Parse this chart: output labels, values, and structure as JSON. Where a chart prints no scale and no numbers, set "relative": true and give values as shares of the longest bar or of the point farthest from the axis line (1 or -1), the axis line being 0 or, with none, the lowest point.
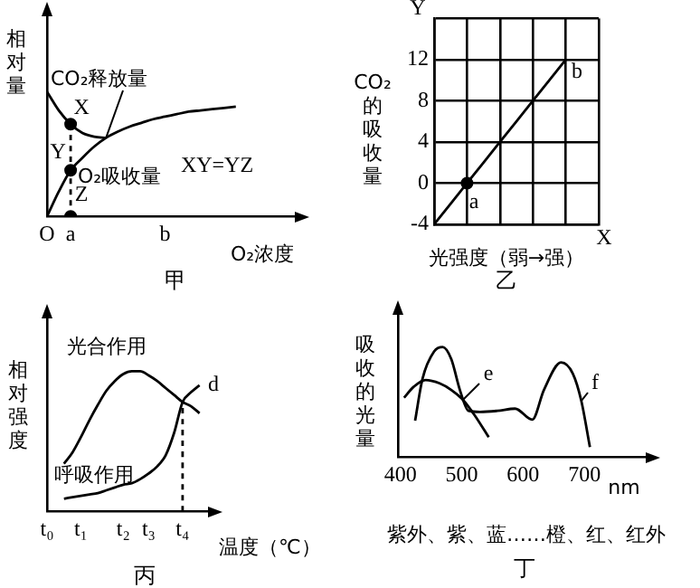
{
  "chart_data": [
    {
      "type": "line",
      "title": "甲",
      "xlabel": "O₂浓度",
      "ylabel": "相对量",
      "relative": true,
      "categories": [
        "O",
        null,
        "a",
        null,
        null,
        null,
        null,
        null,
        null,
        null,
        "b",
        null,
        null,
        null,
        null,
        null,
        null,
        null,
        null,
        null,
        null,
        null
      ],
      "series": [
        {
          "name": "CO₂释放量",
          "color": "#000000",
          "values": [
            1,
            0.85,
            0.74,
            0.67,
            0.64,
            0.63,
            null,
            null,
            null,
            null,
            null,
            null,
            null,
            null,
            null,
            null,
            null,
            null,
            null,
            null,
            null,
            null
          ]
        },
        {
          "name": "O₂吸收量",
          "color": "#000000",
          "values": [
            0,
            0.2,
            0.37,
            0.47,
            0.56,
            0.63,
            0.68,
            0.72,
            0.75,
            0.78,
            0.8,
            0.82,
            0.84,
            0.85,
            0.86,
            0.87,
            0.88,
            null,
            null,
            null,
            null,
            null
          ]
        },
        {
          "type": "line",
          "line_style": "dashed",
          "color": "#000000",
          "x": [
            "a",
            "a"
          ],
          "values": [
            0,
            0.74
          ]
        },
        {
          "type": "scatter",
          "marker": "circle",
          "color": "#000000",
          "x": [
            "a",
            "a",
            "a"
          ],
          "values": [
            0.74,
            0.37,
            0
          ]
        }
      ],
      "annotations": [
        {
          "text": "X",
          "x": "a",
          "y": 0.74
        },
        {
          "text": "Y",
          "x": "a",
          "y": 0.37
        },
        {
          "text": "Z",
          "x": "a",
          "y": 0
        },
        "XY=YZ"
      ]
    },
    {
      "type": "line",
      "title": "乙",
      "xlabel": "光强度（弱→强）",
      "ylabel": "CO₂的吸收量",
      "categories": [
        null,
        null,
        null,
        null,
        null,
        null
      ],
      "ylim": [
        -4,
        16
      ],
      "yticks": [
        -4,
        0,
        4,
        8,
        12,
        {
          "value": 16,
          "label": null
        }
      ],
      "grid": true,
      "tick_labels": "y",
      "series": [
        {
          "color": "#000000",
          "values": [
            -4,
            0,
            4,
            8,
            12,
            null
          ]
        },
        {
          "type": "scatter",
          "marker": "circle",
          "color": "#000000",
          "values": [
            null,
            0,
            null,
            null,
            null,
            null
          ]
        }
      ],
      "annotations": [
        "a",
        "b",
        "Y",
        "X"
      ]
    },
    {
      "type": "line",
      "title": "丙",
      "xlabel": "温度（℃）",
      "ylabel": "相对强度",
      "relative": true,
      "categories": [
        "t₀",
        null,
        null,
        null,
        "t₁",
        null,
        null,
        null,
        null,
        "t₂",
        null,
        null,
        "t₃",
        null,
        null,
        null,
        "t₄",
        null,
        null,
        null
      ],
      "series": [
        {
          "name": "光合作用",
          "color": "#000000",
          "values": [
            null,
            null,
            0.34,
            0.42,
            0.53,
            0.65,
            0.76,
            0.86,
            0.93,
            0.98,
            1,
            1,
            0.97,
            0.93,
            0.88,
            0.83,
            0.78,
            0.75,
            0.7,
            null
          ]
        },
        {
          "name": "呼吸作用",
          "color": "#000000",
          "values": [
            null,
            null,
            0.09,
            0.1,
            0.11,
            0.12,
            0.13,
            0.15,
            0.17,
            0.19,
            0.2,
            0.23,
            0.27,
            0.32,
            0.4,
            0.56,
            0.78,
            0.85,
            0.9,
            null
          ]
        },
        {
          "type": "line",
          "line_style": "dashed",
          "color": "#000000",
          "x": [
            "t₄",
            "t₄"
          ],
          "values": [
            0,
            0.78
          ]
        }
      ],
      "annotations": [
        "d"
      ]
    },
    {
      "type": "line",
      "title": "丁",
      "xlabel": "nm",
      "ylabel": "吸收的光量",
      "relative": true,
      "xlim": [
        396,
        800
      ],
      "xticks": [
        400,
        500,
        600,
        700
      ],
      "series": [
        {
          "name": "e",
          "color": "#000000",
          "x": [
            406,
            422,
            441,
            464,
            483,
            502,
            521,
            544
          ],
          "values": [
            0.54,
            0.64,
            0.7,
            0.67,
            0.61,
            0.52,
            0.38,
            0.18
          ]
        },
        {
          "name": "f",
          "color": "#000000",
          "x": [
            424,
            436,
            455,
            469,
            483,
            497,
            511,
            530,
            558,
            587,
            615,
            634,
            662,
            681,
            695,
            709
          ],
          "values": [
            0.33,
            0.71,
            0.96,
            1,
            0.89,
            0.61,
            0.42,
            0.41,
            0.42,
            0.44,
            0.34,
            0.61,
            0.86,
            0.76,
            0.51,
            0.09
          ]
        }
      ],
      "annotations": [
        "紫外、紫、蓝……橙、红、红外"
      ]
    }
  ]
}
